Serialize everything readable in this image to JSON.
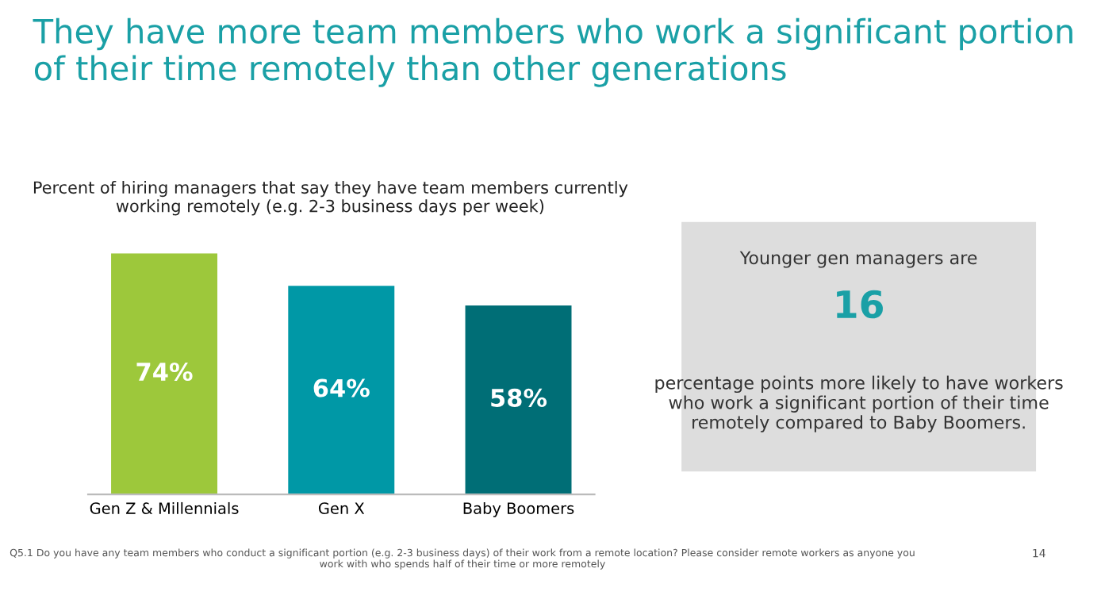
{
  "chart_data": {
    "type": "bar",
    "title": "They have more team members who work a significant portion of their time remotely than other generations",
    "subtitle": "Percent of hiring managers that say they have team members currently working remotely (e.g. 2-3 business days per week)",
    "categories": [
      "Gen Z & Millennials",
      "Gen X",
      "Baby Boomers"
    ],
    "values": [
      74,
      64,
      58
    ],
    "colors": [
      "#9dc83b",
      "#0098a6",
      "#006e76"
    ],
    "value_labels": [
      "74%",
      "64%",
      "58%"
    ],
    "annotations": [
      "Younger gen managers are",
      "16",
      "percentage points more likely to have workers who work a significant portion of their time remotely compared to Baby Boomers.",
      "Q5.1 Do you have any team members who conduct a significant portion (e.g. 2-3 business days) of their work from a remote location? Please consider remote workers as anyone you work with who spends half of their time or more remotely",
      "14"
    ]
  }
}
